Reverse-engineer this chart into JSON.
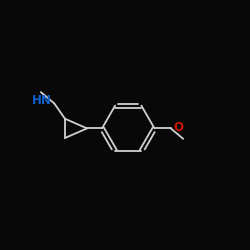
{
  "background_color": "#080808",
  "bond_color": "#d0d0d0",
  "N_color": "#1060cc",
  "O_color": "#cc1500",
  "figsize": [
    2.5,
    2.5
  ],
  "dpi": 100,
  "N_label": "HN",
  "O_label": "O",
  "bond_lw": 1.3,
  "font_size": 8.5,
  "xlim": [
    0,
    1
  ],
  "ylim": [
    0,
    1
  ],
  "ring_r": 0.105,
  "cp_size": 0.055
}
